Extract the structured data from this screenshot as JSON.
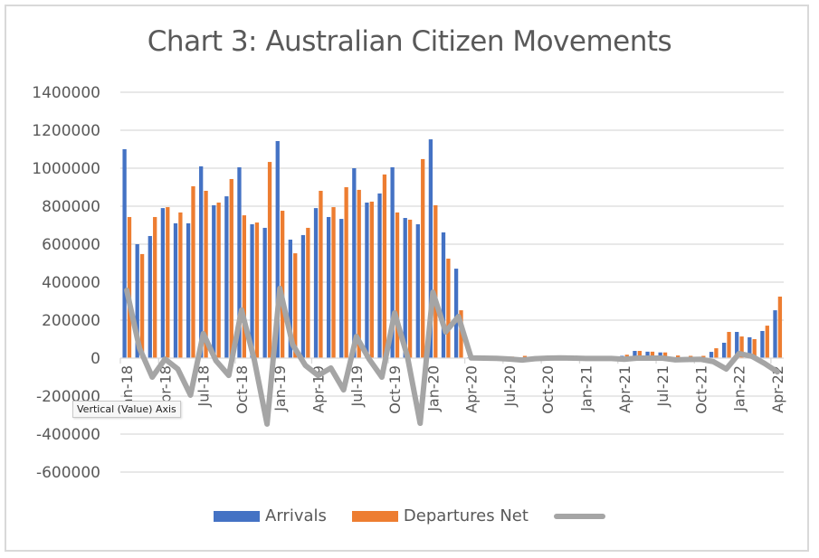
{
  "chart_data": {
    "type": "bar",
    "title": "Chart 3: Australian Citizen Movements",
    "xlabel": "",
    "ylabel": "",
    "ylim": [
      -600000,
      1400000
    ],
    "yticks": [
      1400000,
      1200000,
      1000000,
      800000,
      600000,
      400000,
      200000,
      0,
      -200000,
      -400000,
      -600000
    ],
    "grid": true,
    "legend_position": "bottom",
    "x_tick_labels_shown": [
      "Jan-18",
      "Apr-18",
      "Jul-18",
      "Oct-18",
      "Jan-19",
      "Apr-19",
      "Jul-19",
      "Oct-19",
      "Jan-20",
      "Apr-20",
      "Jul-20",
      "Oct-20",
      "Jan-21",
      "Apr-21",
      "Jul-21",
      "Oct-21",
      "Jan-22",
      "Apr-22"
    ],
    "categories": [
      "Jan-18",
      "Feb-18",
      "Mar-18",
      "Apr-18",
      "May-18",
      "Jun-18",
      "Jul-18",
      "Aug-18",
      "Sep-18",
      "Oct-18",
      "Nov-18",
      "Dec-18",
      "Jan-19",
      "Feb-19",
      "Mar-19",
      "Apr-19",
      "May-19",
      "Jun-19",
      "Jul-19",
      "Aug-19",
      "Sep-19",
      "Oct-19",
      "Nov-19",
      "Dec-19",
      "Jan-20",
      "Feb-20",
      "Mar-20",
      "Apr-20",
      "May-20",
      "Jun-20",
      "Jul-20",
      "Aug-20",
      "Sep-20",
      "Oct-20",
      "Nov-20",
      "Dec-20",
      "Jan-21",
      "Feb-21",
      "Mar-21",
      "Apr-21",
      "May-21",
      "Jun-21",
      "Jul-21",
      "Aug-21",
      "Sep-21",
      "Oct-21",
      "Nov-21",
      "Dec-21",
      "Jan-22",
      "Feb-22",
      "Mar-22",
      "Apr-22"
    ],
    "series": [
      {
        "name": "Arrivals",
        "type": "bar",
        "color": "#4472c4",
        "values": [
          1100000,
          600000,
          643000,
          790000,
          710000,
          710000,
          1010000,
          805000,
          852000,
          1005000,
          705000,
          686000,
          1143000,
          624000,
          648000,
          790000,
          743000,
          733000,
          1000000,
          819000,
          867000,
          1005000,
          738000,
          705000,
          1152000,
          662000,
          471000,
          4000,
          3000,
          3000,
          3000,
          2000,
          2000,
          3000,
          4000,
          4000,
          3000,
          3000,
          4000,
          12000,
          38000,
          34000,
          30000,
          5000,
          5000,
          6000,
          33000,
          81000,
          138000,
          110000,
          143000,
          252000
        ]
      },
      {
        "name": "Departures",
        "type": "bar",
        "color": "#ed7d31",
        "values": [
          743000,
          548000,
          743000,
          795000,
          767000,
          905000,
          881000,
          819000,
          943000,
          752000,
          714000,
          1033000,
          776000,
          552000,
          686000,
          881000,
          795000,
          900000,
          886000,
          824000,
          967000,
          767000,
          729000,
          1048000,
          805000,
          524000,
          252000,
          3000,
          3000,
          4000,
          8000,
          12000,
          5000,
          3000,
          3000,
          4000,
          5000,
          5000,
          6000,
          18000,
          38000,
          34000,
          30000,
          14000,
          12000,
          12000,
          52000,
          138000,
          114000,
          100000,
          171000,
          324000
        ]
      },
      {
        "name": "Net",
        "type": "line",
        "color": "#a5a5a5",
        "values": [
          357000,
          52000,
          -100000,
          -5000,
          -57000,
          -195000,
          129000,
          -14000,
          -91000,
          253000,
          -9000,
          -347000,
          367000,
          72000,
          -38000,
          -91000,
          -52000,
          -167000,
          114000,
          -5000,
          -100000,
          238000,
          9000,
          -343000,
          347000,
          138000,
          219000,
          1000,
          0,
          -1000,
          -5000,
          -10000,
          -3000,
          0,
          1000,
          0,
          -2000,
          -2000,
          -2000,
          -6000,
          0,
          0,
          0,
          -9000,
          -7000,
          -6000,
          -19000,
          -57000,
          24000,
          10000,
          -28000,
          -72000
        ]
      }
    ]
  },
  "legend": {
    "items": [
      {
        "label": "Arrivals",
        "color": "#4472c4"
      },
      {
        "label": "Departures",
        "color": "#ed7d31"
      },
      {
        "label": "Net",
        "color": "#a5a5a5"
      }
    ],
    "display_labels": [
      "Arrivals",
      "Departures Net",
      ""
    ]
  },
  "tooltip": {
    "text": "Vertical (Value) Axis"
  }
}
